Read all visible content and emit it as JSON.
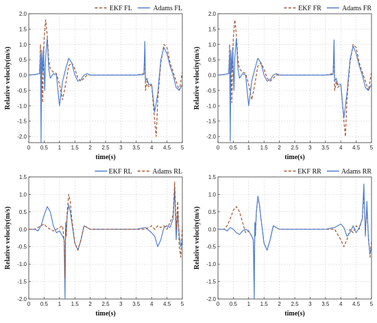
{
  "chart_data": [
    {
      "type": "line",
      "panel": "FL",
      "xlabel": "time(s)",
      "ylabel": "Relative velocity(m/s)",
      "xlim": [
        0,
        5
      ],
      "ylim": [
        -2.2,
        2.0
      ],
      "xticks": [
        "0",
        "0.5",
        "1",
        "1.5",
        "2",
        "2.5",
        "3",
        "3.5",
        "4",
        "4.5",
        "5"
      ],
      "yticks": [
        "2.0",
        "1.5",
        "1.0",
        "0.5",
        "0.0",
        "-0.5",
        "-1.0",
        "-1.5",
        "-2.0"
      ],
      "grid": true,
      "legend": "top-right",
      "series": [
        {
          "name": "EKF FL",
          "color": "#a0522d",
          "dash": "dashed",
          "x": [
            0,
            0.2,
            0.35,
            0.38,
            0.4,
            0.42,
            0.45,
            0.5,
            0.55,
            0.6,
            0.65,
            0.7,
            0.8,
            0.9,
            1.0,
            1.1,
            1.2,
            1.3,
            1.4,
            1.5,
            1.6,
            1.7,
            1.8,
            1.9,
            2.0,
            2.5,
            3.0,
            3.5,
            3.75,
            3.78,
            3.8,
            3.85,
            3.9,
            4.0,
            4.1,
            4.15,
            4.2,
            4.3,
            4.4,
            4.5,
            4.6,
            4.7,
            4.8,
            4.9,
            5.0
          ],
          "y": [
            0,
            0.02,
            0.05,
            1.0,
            -1.2,
            0.6,
            -0.9,
            1.2,
            1.8,
            1.3,
            0.5,
            0.2,
            0.1,
            0.05,
            -0.3,
            -0.8,
            -0.3,
            0.3,
            0.4,
            0.2,
            -0.1,
            -0.2,
            -0.1,
            0.0,
            0.0,
            0.0,
            0.0,
            0.0,
            0.05,
            0.7,
            -0.5,
            -0.2,
            -0.4,
            -0.3,
            -1.5,
            -2.0,
            -0.8,
            0.4,
            1.0,
            0.9,
            0.4,
            0.1,
            -0.2,
            -0.5,
            0.1
          ]
        },
        {
          "name": "Adams FL",
          "color": "#4f7fd0",
          "dash": "solid",
          "x": [
            0,
            0.2,
            0.35,
            0.38,
            0.4,
            0.42,
            0.45,
            0.48,
            0.52,
            0.55,
            0.6,
            0.65,
            0.7,
            0.8,
            0.9,
            1.0,
            1.1,
            1.2,
            1.3,
            1.4,
            1.5,
            1.6,
            1.7,
            1.8,
            1.9,
            2.0,
            2.5,
            3.0,
            3.5,
            3.75,
            3.78,
            3.8,
            3.85,
            3.9,
            4.0,
            4.1,
            4.2,
            4.3,
            4.4,
            4.5,
            4.6,
            4.7,
            4.8,
            4.9,
            5.0
          ],
          "y": [
            0,
            0.02,
            0.05,
            0.7,
            -2.2,
            0.8,
            0.1,
            0.9,
            -0.5,
            0.6,
            1.2,
            0.2,
            -0.1,
            0.05,
            0.0,
            -1.0,
            -0.2,
            0.2,
            0.55,
            0.4,
            0.0,
            -0.2,
            -0.15,
            0.0,
            0.05,
            0.0,
            0.0,
            0.0,
            0.0,
            0.02,
            1.1,
            -0.2,
            -0.1,
            -0.3,
            -0.3,
            -1.2,
            -0.6,
            0.5,
            0.9,
            0.7,
            0.3,
            0.0,
            -0.4,
            -0.5,
            -0.3
          ]
        }
      ]
    },
    {
      "type": "line",
      "panel": "FR",
      "xlabel": "time(s)",
      "ylabel": "Relative velocity(m/s)",
      "xlim": [
        0,
        5
      ],
      "ylim": [
        -2.2,
        2.0
      ],
      "xticks": [
        "0",
        "0.5",
        "1",
        "1.5",
        "2",
        "2.5",
        "3",
        "3.5",
        "4",
        "4.5",
        "5"
      ],
      "yticks": [
        "2.0",
        "1.5",
        "1.0",
        "0.5",
        "0.0",
        "-0.5",
        "-1.0",
        "-1.5",
        "-2.0"
      ],
      "grid": true,
      "legend": "top-right",
      "series": [
        {
          "name": "EKF FR",
          "color": "#a0522d",
          "dash": "dashed",
          "x": [
            0,
            0.2,
            0.35,
            0.38,
            0.4,
            0.42,
            0.45,
            0.5,
            0.55,
            0.6,
            0.65,
            0.7,
            0.8,
            0.9,
            1.0,
            1.1,
            1.2,
            1.3,
            1.4,
            1.5,
            1.6,
            1.7,
            1.8,
            1.9,
            2.0,
            2.5,
            3.0,
            3.5,
            3.75,
            3.78,
            3.8,
            3.85,
            3.9,
            4.0,
            4.1,
            4.15,
            4.2,
            4.3,
            4.4,
            4.5,
            4.6,
            4.7,
            4.8,
            4.9,
            5.0
          ],
          "y": [
            0,
            0.02,
            0.05,
            1.0,
            -1.3,
            0.6,
            -0.9,
            1.2,
            1.8,
            1.3,
            0.5,
            0.2,
            0.1,
            0.05,
            -0.3,
            -0.8,
            -0.3,
            0.3,
            0.4,
            0.2,
            -0.1,
            -0.2,
            -0.1,
            0.0,
            0.0,
            0.0,
            0.0,
            0.0,
            0.05,
            0.7,
            -0.5,
            -0.2,
            -0.4,
            -0.3,
            -1.5,
            -2.0,
            -0.8,
            0.4,
            1.0,
            0.9,
            0.4,
            0.1,
            -0.2,
            -0.5,
            0.1
          ]
        },
        {
          "name": "Adams FR",
          "color": "#4f7fd0",
          "dash": "solid",
          "x": [
            0,
            0.2,
            0.35,
            0.38,
            0.4,
            0.42,
            0.45,
            0.48,
            0.52,
            0.55,
            0.6,
            0.65,
            0.7,
            0.8,
            0.9,
            1.0,
            1.1,
            1.2,
            1.3,
            1.4,
            1.5,
            1.6,
            1.7,
            1.8,
            1.9,
            2.0,
            2.5,
            3.0,
            3.5,
            3.75,
            3.78,
            3.8,
            3.85,
            3.9,
            4.0,
            4.1,
            4.2,
            4.3,
            4.4,
            4.5,
            4.6,
            4.7,
            4.8,
            4.9,
            5.0
          ],
          "y": [
            0,
            0.02,
            0.05,
            0.7,
            -2.15,
            0.8,
            0.1,
            0.9,
            -0.5,
            0.6,
            1.2,
            0.2,
            -0.1,
            0.05,
            0.0,
            -1.0,
            -0.2,
            0.2,
            0.55,
            0.4,
            0.0,
            -0.2,
            -0.15,
            0.0,
            0.05,
            0.0,
            0.0,
            0.0,
            0.0,
            0.02,
            1.15,
            -0.2,
            -0.1,
            -0.3,
            -0.3,
            -1.4,
            -0.6,
            0.5,
            0.95,
            0.7,
            0.3,
            0.0,
            -0.4,
            -0.5,
            -0.3
          ]
        }
      ]
    },
    {
      "type": "line",
      "panel": "RL",
      "xlabel": "time(s)",
      "ylabel": "Relative velocity(m/s)",
      "xlim": [
        0,
        5
      ],
      "ylim": [
        -2.0,
        1.5
      ],
      "xticks": [
        "0",
        "0.5",
        "1",
        "1.5",
        "2",
        "2.5",
        "3",
        "3.5",
        "4",
        "4.5",
        "5"
      ],
      "yticks": [
        "1.5",
        "1.0",
        "0.5",
        "0.0",
        "-0.5",
        "-1.0",
        "-1.5",
        "-2.0"
      ],
      "grid": true,
      "legend": "top-right",
      "series": [
        {
          "name": "EKF RL",
          "color": "#4f7fd0",
          "dash": "solid",
          "x": [
            0,
            0.2,
            0.3,
            0.4,
            0.5,
            0.6,
            0.7,
            0.8,
            0.9,
            1.0,
            1.1,
            1.15,
            1.18,
            1.2,
            1.22,
            1.25,
            1.3,
            1.35,
            1.4,
            1.5,
            1.6,
            1.7,
            1.8,
            1.9,
            2.0,
            2.5,
            3.0,
            3.5,
            3.8,
            4.0,
            4.1,
            4.2,
            4.3,
            4.4,
            4.5,
            4.6,
            4.7,
            4.75,
            4.8,
            4.85,
            4.9,
            4.95,
            5.0
          ],
          "y": [
            0,
            0.0,
            -0.05,
            0.1,
            0.4,
            0.65,
            0.5,
            0.1,
            -0.1,
            -0.05,
            -0.2,
            -0.3,
            -2.0,
            0.2,
            -0.1,
            0.4,
            0.7,
            0.5,
            0.2,
            -0.4,
            -0.6,
            -0.3,
            0.1,
            0.05,
            0.0,
            0.0,
            0.0,
            0.0,
            0.05,
            -0.1,
            -0.2,
            -0.5,
            -0.3,
            0.05,
            0.1,
            0.05,
            0.3,
            1.2,
            -0.3,
            0.5,
            -0.2,
            -0.5,
            -0.3
          ]
        },
        {
          "name": "Adams RL",
          "color": "#a0522d",
          "dash": "dashed",
          "x": [
            0,
            0.2,
            0.3,
            0.4,
            0.5,
            0.6,
            0.7,
            0.8,
            0.9,
            1.0,
            1.1,
            1.15,
            1.18,
            1.2,
            1.22,
            1.25,
            1.3,
            1.35,
            1.4,
            1.5,
            1.6,
            1.7,
            1.8,
            1.9,
            2.0,
            2.5,
            3.0,
            3.5,
            3.8,
            4.0,
            4.1,
            4.2,
            4.3,
            4.4,
            4.5,
            4.6,
            4.7,
            4.75,
            4.8,
            4.85,
            4.9,
            4.95,
            5.0
          ],
          "y": [
            0,
            0.0,
            0.05,
            0.1,
            0.15,
            0.05,
            0.0,
            -0.05,
            0.0,
            0.05,
            0.1,
            -0.3,
            -1.4,
            0.0,
            -0.2,
            0.5,
            1.0,
            0.8,
            0.3,
            -0.4,
            -0.6,
            -0.3,
            0.1,
            0.05,
            0.0,
            0.0,
            0.0,
            0.0,
            0.0,
            0.1,
            0.0,
            0.1,
            0.05,
            0.1,
            0.0,
            0.2,
            0.4,
            1.35,
            0.0,
            0.8,
            -0.5,
            -0.8,
            0.1
          ]
        }
      ]
    },
    {
      "type": "line",
      "panel": "RR",
      "xlabel": "time(s)",
      "ylabel": "Relative velocity(m/s)",
      "xlim": [
        0,
        5
      ],
      "ylim": [
        -2.0,
        1.5
      ],
      "xticks": [
        "0",
        "0.5",
        "1",
        "1.5",
        "2",
        "2.5",
        "3",
        "3.5",
        "4",
        "4.5",
        "5"
      ],
      "yticks": [
        "1.5",
        "1.0",
        "0.5",
        "0.0",
        "-0.5",
        "-1.0",
        "-1.5",
        "-2.0"
      ],
      "grid": true,
      "legend": "top-right",
      "series": [
        {
          "name": "EKF RR",
          "color": "#a0522d",
          "dash": "dashed",
          "x": [
            0,
            0.2,
            0.3,
            0.4,
            0.5,
            0.6,
            0.7,
            0.8,
            0.9,
            1.0,
            1.1,
            1.15,
            1.18,
            1.2,
            1.22,
            1.25,
            1.3,
            1.35,
            1.4,
            1.5,
            1.6,
            1.7,
            1.8,
            1.9,
            2.0,
            2.5,
            3.0,
            3.5,
            3.8,
            4.0,
            4.1,
            4.2,
            4.3,
            4.4,
            4.5,
            4.6,
            4.7,
            4.75,
            4.8,
            4.85,
            4.9,
            4.95,
            5.0
          ],
          "y": [
            0,
            0.0,
            0.1,
            0.3,
            0.55,
            0.65,
            0.5,
            0.2,
            -0.1,
            -0.05,
            -0.2,
            -0.3,
            -1.4,
            0.0,
            -0.2,
            0.5,
            0.9,
            0.7,
            0.3,
            -0.4,
            -0.6,
            -0.3,
            0.1,
            0.05,
            0.0,
            0.0,
            0.0,
            0.0,
            0.0,
            -0.3,
            -0.5,
            -0.3,
            0.0,
            -0.1,
            0.1,
            0.0,
            0.3,
            1.0,
            0.0,
            0.5,
            -0.2,
            -0.8,
            -0.3
          ]
        },
        {
          "name": "Adams RR",
          "color": "#4f7fd0",
          "dash": "solid",
          "x": [
            0,
            0.2,
            0.3,
            0.4,
            0.5,
            0.6,
            0.7,
            0.8,
            0.9,
            1.0,
            1.1,
            1.15,
            1.18,
            1.2,
            1.22,
            1.25,
            1.3,
            1.35,
            1.4,
            1.5,
            1.6,
            1.7,
            1.8,
            1.9,
            2.0,
            2.5,
            3.0,
            3.5,
            3.8,
            4.0,
            4.1,
            4.2,
            4.3,
            4.4,
            4.5,
            4.6,
            4.7,
            4.75,
            4.8,
            4.85,
            4.9,
            4.95,
            5.0
          ],
          "y": [
            0,
            0.0,
            -0.05,
            0.05,
            0.0,
            -0.1,
            -0.15,
            -0.05,
            0.0,
            -0.05,
            -0.2,
            -0.3,
            -2.0,
            0.2,
            -0.1,
            0.5,
            0.95,
            0.7,
            0.3,
            -0.4,
            -0.6,
            -0.3,
            0.1,
            0.05,
            0.0,
            0.0,
            0.0,
            0.0,
            0.05,
            0.15,
            0.05,
            -0.2,
            -0.1,
            0.1,
            -0.1,
            0.05,
            0.3,
            1.3,
            -0.2,
            0.8,
            -0.3,
            -0.7,
            -0.5
          ]
        }
      ]
    }
  ]
}
